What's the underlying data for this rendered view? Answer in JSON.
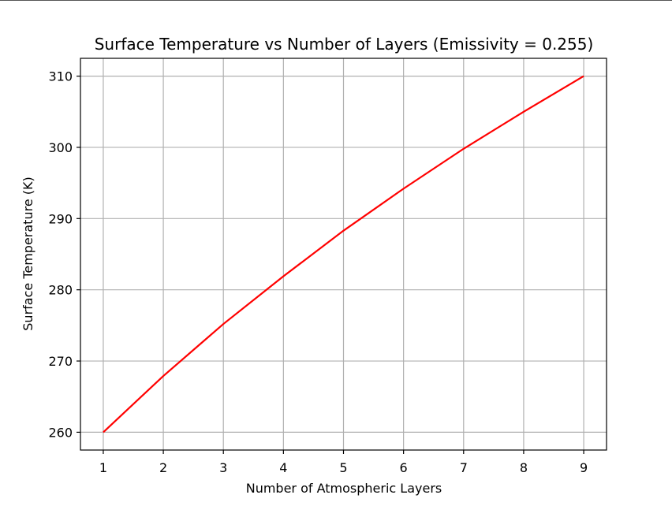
{
  "chart_data": {
    "type": "line",
    "title": "Surface Temperature vs Number of Layers (Emissivity = 0.255)",
    "xlabel": "Number of Atmospheric Layers",
    "ylabel": "Surface Temperature (K)",
    "xlim": [
      0.62,
      9.38
    ],
    "ylim": [
      257.5,
      312.5
    ],
    "xticks": [
      1,
      2,
      3,
      4,
      5,
      6,
      7,
      8,
      9
    ],
    "yticks": [
      260,
      270,
      280,
      290,
      300,
      310
    ],
    "grid": true,
    "series": [
      {
        "color": "#ff0000",
        "x": [
          1,
          2,
          3,
          4,
          5,
          6,
          7,
          8,
          9
        ],
        "y": [
          260.0,
          267.9,
          275.2,
          281.9,
          288.3,
          294.2,
          299.8,
          305.0,
          310.0
        ]
      }
    ]
  },
  "colors": {
    "grid": "#b0b0b0",
    "axes": "#000000",
    "line": "#ff0000"
  }
}
